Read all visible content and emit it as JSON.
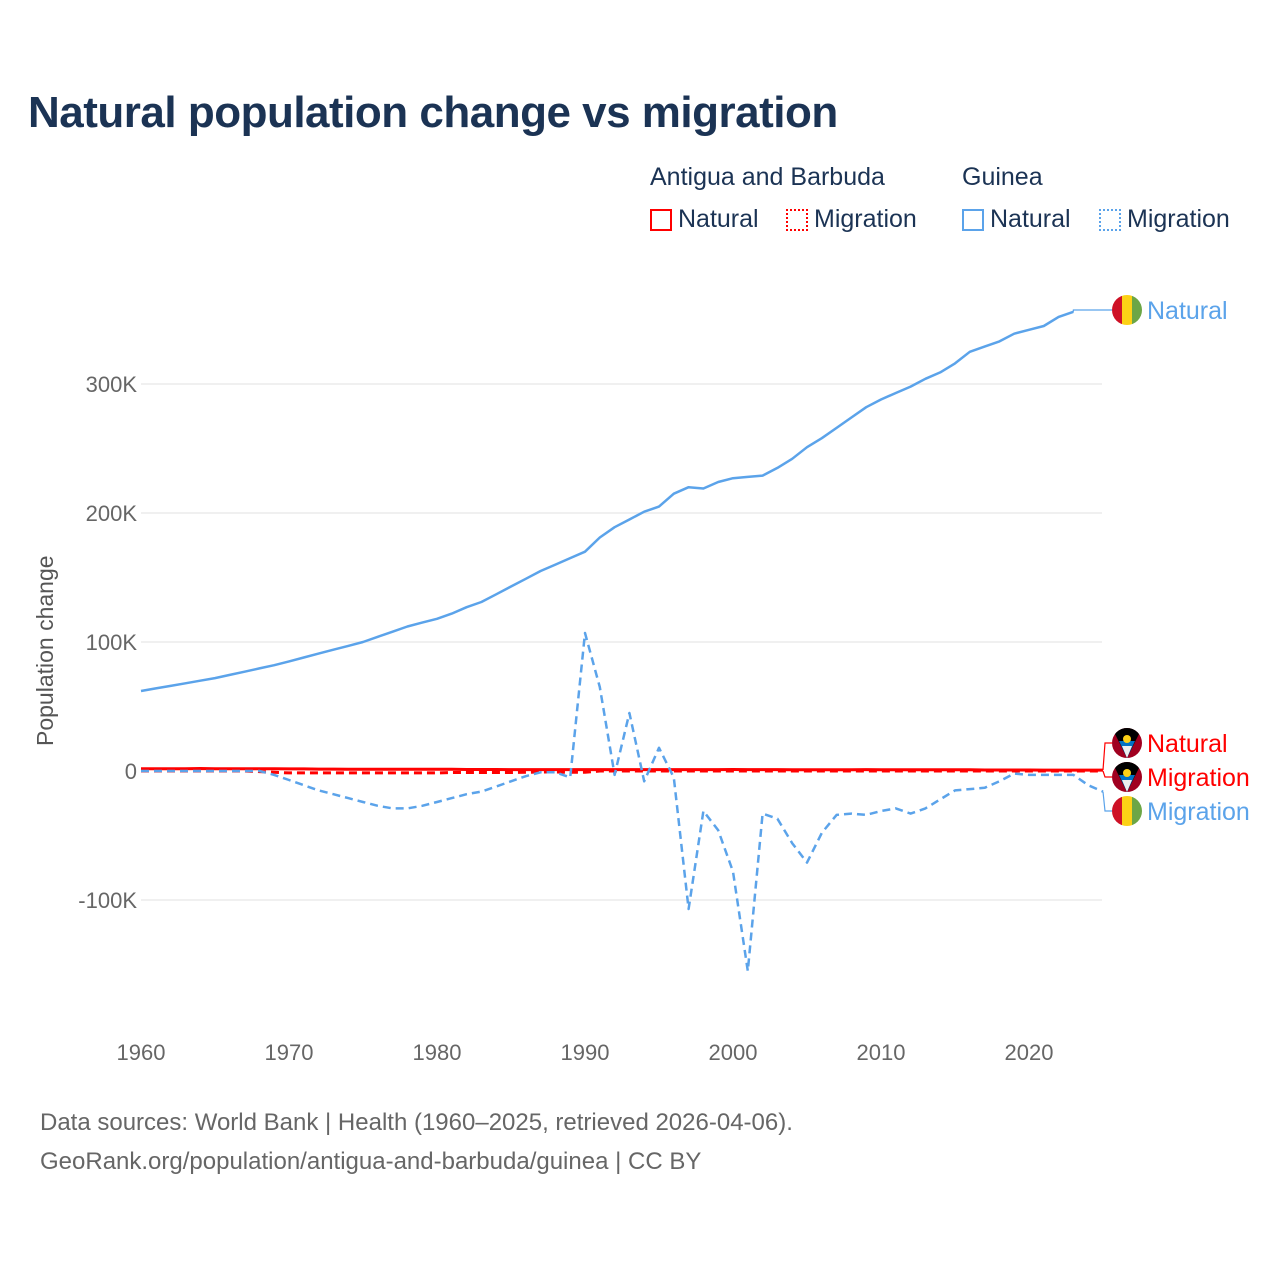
{
  "title": "Natural population change vs migration",
  "legend": {
    "groups": [
      {
        "name": "Antigua and Barbuda",
        "items": [
          "Natural",
          "Migration"
        ],
        "color": "#ff0000"
      },
      {
        "name": "Guinea",
        "items": [
          "Natural",
          "Migration"
        ],
        "color": "#5ba3ea"
      }
    ]
  },
  "source_line1": "Data sources: World Bank | Health (1960–2025, retrieved 2026-04-06).",
  "source_line2": "GeoRank.org/population/antigua-and-barbuda/guinea | CC BY",
  "chart_data": {
    "type": "line",
    "title": "Natural population change vs migration",
    "xlabel": "",
    "ylabel": "Population change",
    "xlim": [
      1960,
      2025
    ],
    "ylim": [
      -170000,
      360000
    ],
    "x_ticks": [
      1960,
      1970,
      1980,
      1990,
      2000,
      2010,
      2020
    ],
    "x_tick_labels": [
      "1960",
      "1970",
      "1980",
      "1990",
      "2000",
      "2010",
      "2020"
    ],
    "y_ticks": [
      -100000,
      0,
      100000,
      200000,
      300000
    ],
    "y_tick_labels": [
      "-100K",
      "0",
      "100K",
      "200K",
      "300K"
    ],
    "grid": true,
    "series": [
      {
        "name": "Guinea Natural",
        "label": "Natural",
        "country": "Guinea",
        "color": "#5ba3ea",
        "dash": false,
        "x_start": 1960,
        "values": [
          62000,
          64000,
          66000,
          68000,
          70000,
          72000,
          74500,
          77000,
          79500,
          82000,
          85000,
          88000,
          91000,
          94000,
          97000,
          100000,
          104000,
          108000,
          112000,
          115000,
          118000,
          122000,
          127000,
          131000,
          137000,
          143000,
          149000,
          155000,
          160000,
          165000,
          170000,
          181000,
          189000,
          195000,
          201000,
          205000,
          215000,
          220000,
          219000,
          224000,
          227000,
          228000,
          229000,
          235000,
          242000,
          251000,
          258000,
          266000,
          274000,
          282000,
          288000,
          293000,
          298000,
          304000,
          309000,
          316000,
          325000,
          329000,
          333000,
          339000,
          342000,
          345000,
          352000,
          356000
        ]
      },
      {
        "name": "Guinea Migration",
        "label": "Migration",
        "country": "Guinea",
        "color": "#5ba3ea",
        "dash": true,
        "x_start": 1960,
        "values": [
          0,
          0,
          0,
          0,
          0,
          0,
          0,
          0,
          0,
          -3000,
          -7000,
          -11000,
          -15000,
          -18000,
          -21000,
          -24000,
          -27000,
          -29000,
          -29000,
          -27000,
          -24000,
          -21000,
          -18000,
          -16000,
          -12000,
          -8000,
          -4000,
          -1000,
          -1000,
          -5000,
          107000,
          65000,
          -3000,
          45000,
          -8000,
          18000,
          -5000,
          -107000,
          -31000,
          -46000,
          -78000,
          -155000,
          -33000,
          -37000,
          -56000,
          -71000,
          -48000,
          -34000,
          -33000,
          -34000,
          -31000,
          -29000,
          -33000,
          -29000,
          -22000,
          -15000,
          -14000,
          -13000,
          -8000,
          -2000,
          -3000,
          -3000,
          -3000,
          -3000,
          -11000,
          -16000
        ]
      },
      {
        "name": "Antigua and Barbuda Natural",
        "label": "Natural",
        "country": "Antigua and Barbuda",
        "color": "#ff0000",
        "dash": false,
        "x_start": 1960,
        "values": [
          1800,
          1800,
          1800,
          1800,
          1900,
          1800,
          1800,
          1800,
          1700,
          1700,
          1600,
          1600,
          1500,
          1500,
          1400,
          1400,
          1400,
          1400,
          1400,
          1400,
          1300,
          1300,
          1200,
          1200,
          1200,
          1100,
          1100,
          1100,
          1100,
          1100,
          1100,
          1100,
          1100,
          1100,
          1100,
          1100,
          1100,
          1100,
          1100,
          1100,
          1200,
          1100,
          1100,
          1100,
          1000,
          1000,
          1000,
          1000,
          1000,
          1100,
          1000,
          1000,
          1000,
          900,
          900,
          900,
          900,
          800,
          800,
          800,
          800,
          700,
          700,
          700,
          700,
          700
        ]
      },
      {
        "name": "Antigua and Barbuda Migration",
        "label": "Migration",
        "country": "Antigua and Barbuda",
        "color": "#ff0000",
        "dash": true,
        "x_start": 1960,
        "values": [
          0,
          0,
          0,
          0,
          0,
          0,
          0,
          0,
          -500,
          -1000,
          -1500,
          -1500,
          -1500,
          -1500,
          -1500,
          -1500,
          -1500,
          -1500,
          -1500,
          -1500,
          -1500,
          -1200,
          -1200,
          -1200,
          -1200,
          -1200,
          -1000,
          -800,
          -800,
          -1000,
          -1000,
          0,
          0,
          0,
          0,
          0,
          0,
          0,
          0,
          0,
          0,
          0,
          0,
          0,
          0,
          0,
          0,
          0,
          0,
          0,
          0,
          0,
          0,
          0,
          0,
          0,
          0,
          0,
          0,
          0,
          0,
          0,
          0,
          0,
          0,
          0
        ]
      }
    ]
  }
}
